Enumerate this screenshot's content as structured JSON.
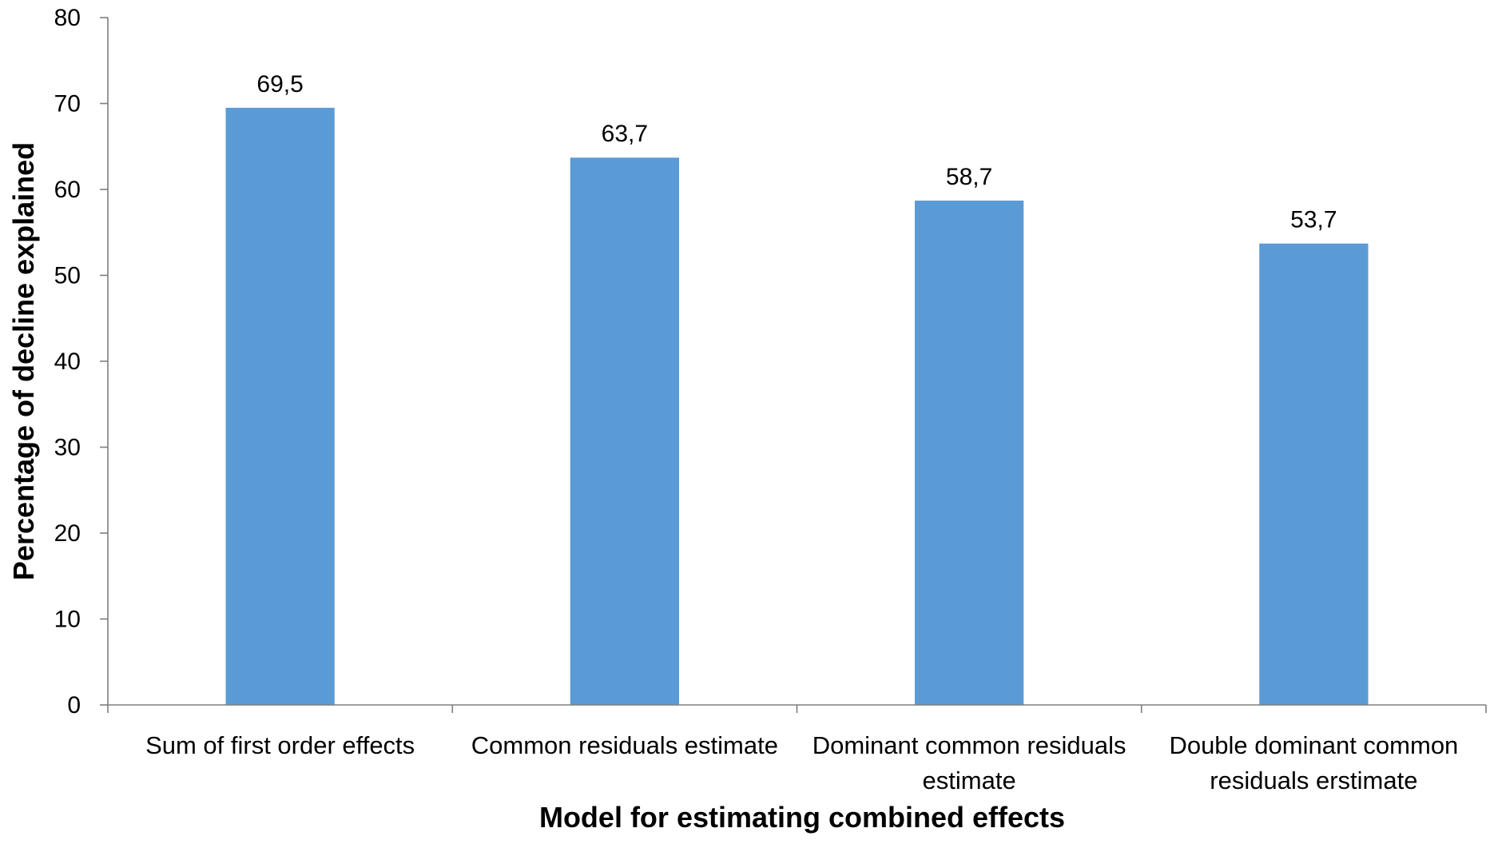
{
  "chart_data": {
    "type": "bar",
    "categories": [
      [
        "Sum of first order effects"
      ],
      [
        "Common residuals estimate"
      ],
      [
        "Dominant common residuals",
        "estimate"
      ],
      [
        "Double dominant common",
        "residuals erstimate"
      ]
    ],
    "values": [
      69.5,
      63.7,
      58.7,
      53.7
    ],
    "data_labels": [
      "69,5",
      "63,7",
      "58,7",
      "53,7"
    ],
    "title": "",
    "xlabel": "Model for estimating combined effects",
    "ylabel": "Percentage of decline explained",
    "ylim": [
      0,
      80
    ],
    "yticks": [
      0,
      10,
      20,
      30,
      40,
      50,
      60,
      70,
      80
    ],
    "bar_color": "#5b9bd5",
    "axis_color": "#7f7f7f",
    "grid": false,
    "legend": "none"
  }
}
